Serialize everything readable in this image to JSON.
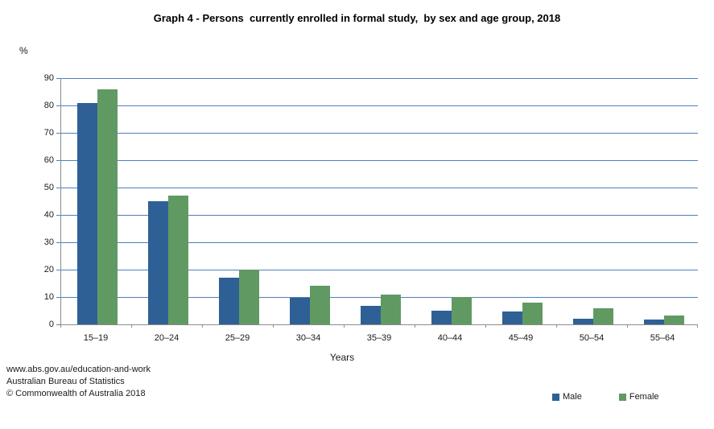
{
  "page": {
    "background": "#ffffff"
  },
  "header": {
    "title": "Graph 4 - Persons  currently enrolled in formal study,  by sex and age group, 2018"
  },
  "chart_data": {
    "type": "bar",
    "title": "Graph 4 - Persons  currently enrolled in formal study,  by sex and age group, 2018",
    "unit_label": "%",
    "xlabel": "Years",
    "ylabel": "%",
    "categories": [
      "15–19",
      "20–24",
      "25–29",
      "30–34",
      "35–39",
      "40–44",
      "45–49",
      "50–54",
      "55–64"
    ],
    "series": [
      {
        "name": "Male",
        "color": "#2E6095",
        "values": [
          81,
          45,
          17,
          9.7,
          6.7,
          5,
          4.8,
          2.2,
          1.7
        ]
      },
      {
        "name": "Female",
        "color": "#609A62",
        "values": [
          86,
          47,
          20,
          14,
          10.9,
          10,
          8,
          5.9,
          3.2
        ]
      }
    ],
    "ylim": [
      0,
      90
    ],
    "ytick_step": 10,
    "yticks": [
      0,
      10,
      20,
      30,
      40,
      50,
      60,
      70,
      80,
      90
    ],
    "grid": true,
    "gridline_color": "#4E80BD",
    "axis_color": "#8C8C8C",
    "legend_position": "bottom-right"
  },
  "legend": {
    "items": [
      {
        "label": "Male",
        "color": "#2E6095"
      },
      {
        "label": "Female",
        "color": "#609A62"
      }
    ]
  },
  "footer": {
    "lines": [
      "www.abs.gov.au/education-and-work",
      "Australian Bureau of Statistics",
      "© Commonwealth of Australia 2018"
    ]
  }
}
